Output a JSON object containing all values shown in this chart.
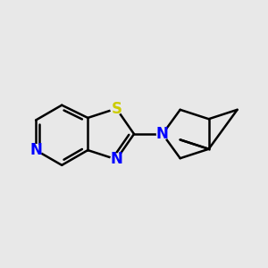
{
  "background_color": "#e8e8e8",
  "bond_color": "#000000",
  "N_color": "#0000ff",
  "S_color": "#cccc00",
  "bond_width": 1.8,
  "figsize": [
    3.0,
    3.0
  ],
  "dpi": 100,
  "xlim": [
    -2.0,
    2.6
  ],
  "ylim": [
    -1.1,
    1.1
  ]
}
